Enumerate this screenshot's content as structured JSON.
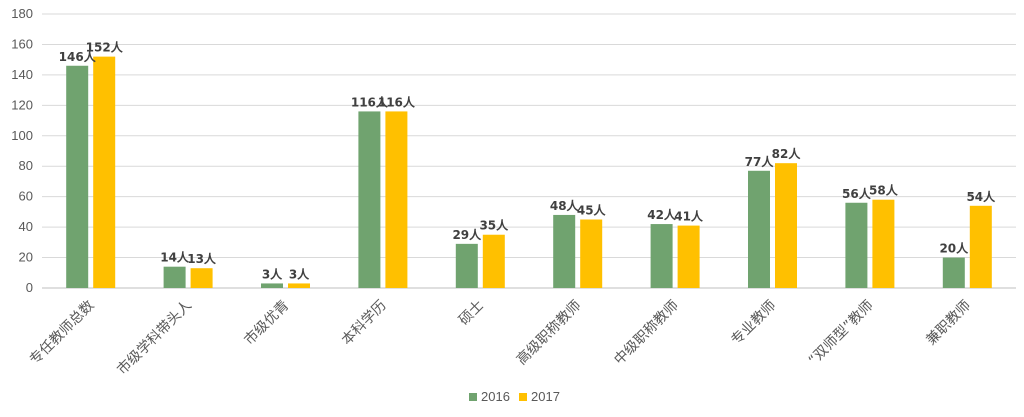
{
  "chart_data": {
    "type": "bar",
    "title": "",
    "xlabel": "",
    "ylabel": "",
    "ylim": [
      0,
      180
    ],
    "yticks": [
      0,
      20,
      40,
      60,
      80,
      100,
      120,
      140,
      160,
      180
    ],
    "grid": true,
    "legend_position": "bottom",
    "categories": [
      "专任教师总数",
      "市级学科带头人",
      "市级优青",
      "本科学历",
      "硕士",
      "高级职称教师",
      "中级职称教师",
      "专业教师",
      "“双师型”教师",
      "兼职教师"
    ],
    "series": [
      {
        "name": "2016",
        "color": "#70a36f",
        "values": [
          146,
          14,
          3,
          116,
          29,
          48,
          42,
          77,
          56,
          20
        ],
        "labels": [
          "146人",
          "14人",
          "3人",
          "116人",
          "29人",
          "48人",
          "42人",
          "77人",
          "56人",
          "20人"
        ]
      },
      {
        "name": "2017",
        "color": "#ffc000",
        "values": [
          152,
          13,
          3,
          116,
          35,
          45,
          41,
          82,
          58,
          54
        ],
        "labels": [
          "152人",
          "13人",
          "3人",
          "116人",
          "35人",
          "45人",
          "41人",
          "82人",
          "58人",
          "54人"
        ]
      }
    ]
  }
}
